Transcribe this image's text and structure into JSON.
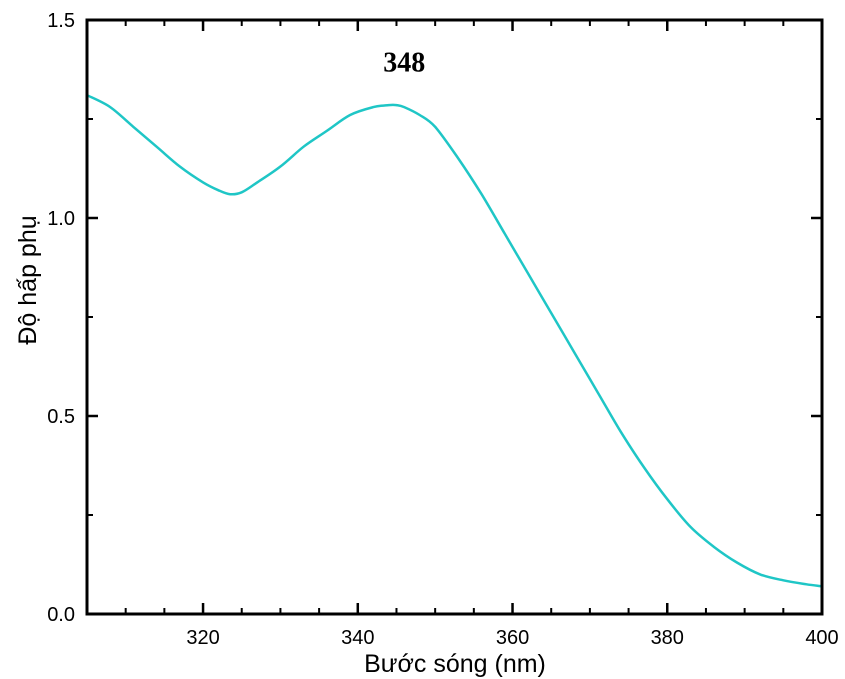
{
  "chart_data": {
    "type": "line",
    "title": "",
    "xlabel": "Bước sóng (nm)",
    "ylabel": "Độ hấp phụ",
    "xlim": [
      305,
      400
    ],
    "ylim": [
      0,
      1.5
    ],
    "x_ticks": [
      320,
      340,
      360,
      380,
      400
    ],
    "x_tick_labels": [
      "320",
      "340",
      "360",
      "380",
      "400"
    ],
    "y_ticks": [
      0,
      0.5,
      1.0,
      1.5
    ],
    "y_tick_labels": [
      "0.0",
      "0.5",
      "1.0",
      "1.5"
    ],
    "x_minor_step": 5,
    "y_minor_step": 0.25,
    "grid": false,
    "line_color": "#1fc6c6",
    "annotation": {
      "text": "348",
      "x": 346,
      "y": 1.37
    },
    "series": [
      {
        "x": [
          305,
          308,
          311,
          314,
          317,
          320,
          322,
          323.5,
          325,
          327,
          330,
          333,
          336,
          339,
          342,
          344,
          345,
          346,
          348,
          350,
          353,
          356,
          359,
          362,
          365,
          368,
          371,
          374,
          377,
          380,
          383,
          386,
          389,
          392,
          395,
          398,
          400
        ],
        "y": [
          1.31,
          1.28,
          1.23,
          1.18,
          1.13,
          1.09,
          1.07,
          1.06,
          1.065,
          1.09,
          1.13,
          1.18,
          1.22,
          1.26,
          1.28,
          1.285,
          1.285,
          1.28,
          1.26,
          1.23,
          1.15,
          1.06,
          0.96,
          0.86,
          0.76,
          0.66,
          0.56,
          0.46,
          0.37,
          0.29,
          0.22,
          0.17,
          0.13,
          0.1,
          0.085,
          0.075,
          0.07
        ]
      }
    ]
  }
}
